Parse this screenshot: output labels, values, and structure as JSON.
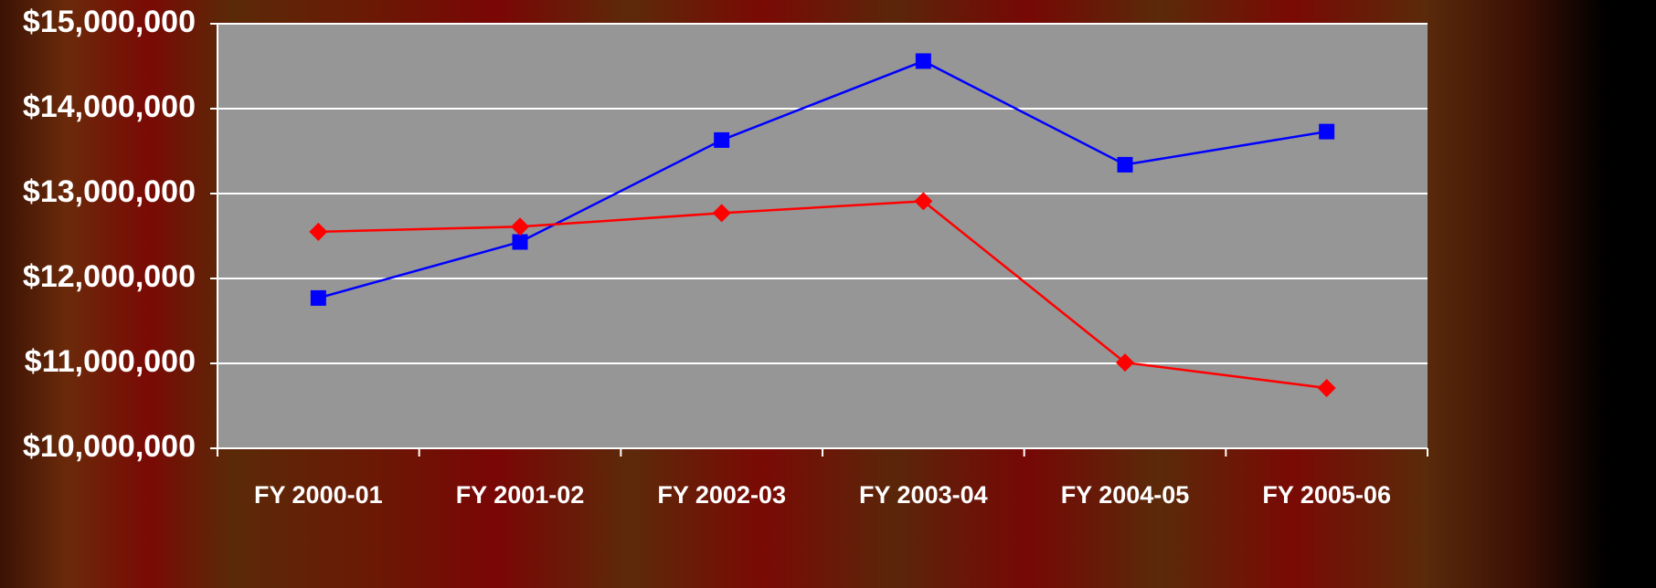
{
  "chart_data": {
    "type": "line",
    "categories": [
      "FY 2000-01",
      "FY 2001-02",
      "FY 2002-03",
      "FY 2003-04",
      "FY 2004-05",
      "FY 2005-06"
    ],
    "series": [
      {
        "color": "#0000ff",
        "marker": "square",
        "values": [
          11770000,
          12430000,
          13630000,
          14560000,
          13340000,
          13730000
        ]
      },
      {
        "color": "#ff0000",
        "marker": "diamond",
        "values": [
          12550000,
          12610000,
          12770000,
          12910000,
          11010000,
          10710000
        ]
      }
    ],
    "ylim": [
      10000000,
      15000000
    ],
    "yticks": [
      {
        "value": 10000000,
        "label": "$10,000,000"
      },
      {
        "value": 11000000,
        "label": "$11,000,000"
      },
      {
        "value": 12000000,
        "label": "$12,000,000"
      },
      {
        "value": 13000000,
        "label": "$13,000,000"
      },
      {
        "value": 14000000,
        "label": "$14,000,000"
      },
      {
        "value": 15000000,
        "label": "$15,000,000"
      }
    ],
    "grid": true
  }
}
